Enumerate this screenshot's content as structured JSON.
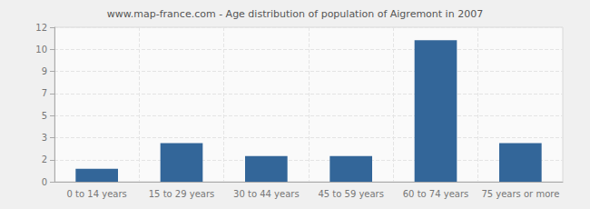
{
  "chart_data": {
    "type": "bar",
    "title": "www.map-france.com - Age distribution of population of Aigremont in 2007",
    "categories": [
      "0 to 14 years",
      "15 to 29 years",
      "30 to 44 years",
      "45 to 59 years",
      "60 to 74 years",
      "75 years or more"
    ],
    "values": [
      1,
      3,
      2,
      2,
      11,
      3
    ],
    "color": "#336699",
    "ylim": [
      0,
      12
    ],
    "yticks": [
      0,
      {
        "value": 1.71,
        "label": "2"
      },
      {
        "value": 3.43,
        "label": "3"
      },
      {
        "value": 5.14,
        "label": "5"
      },
      {
        "value": 6.86,
        "label": "7"
      },
      {
        "value": 8.57,
        "label": "9"
      },
      {
        "value": 10.29,
        "label": "10"
      },
      12
    ],
    "grid": true
  }
}
